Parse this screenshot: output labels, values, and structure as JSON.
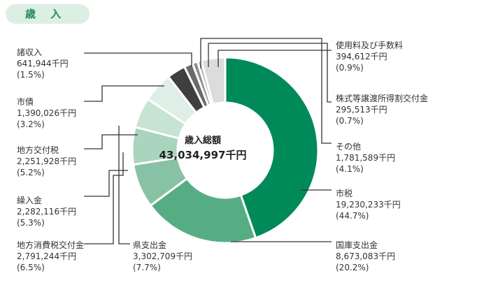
{
  "title": "歳 入",
  "center": {
    "title": "歳入総額",
    "value": "43,034,997千円"
  },
  "chart_data": {
    "type": "donut",
    "title": "歳入",
    "total_label": "歳入総額",
    "total_value": "43,034,997千円",
    "total": 43034997,
    "unit": "千円",
    "slices": [
      {
        "name": "市税",
        "value": 19230233,
        "value_text": "19,230,233千円",
        "percent": 44.7,
        "percent_text": "(44.7%)",
        "color": "#008a5a"
      },
      {
        "name": "国庫支出金",
        "value": 8673083,
        "value_text": "8,673,083千円",
        "percent": 20.2,
        "percent_text": "(20.2%)",
        "color": "#56ad84"
      },
      {
        "name": "県支出金",
        "value": 3302709,
        "value_text": "3,302,709千円",
        "percent": 7.7,
        "percent_text": "(7.7%)",
        "color": "#87c2a4"
      },
      {
        "name": "地方消費税交付金",
        "value": 2791244,
        "value_text": "2,791,244千円",
        "percent": 6.5,
        "percent_text": "(6.5%)",
        "color": "#a9d4bd"
      },
      {
        "name": "繰入金",
        "value": 2282116,
        "value_text": "2,282,116千円",
        "percent": 5.3,
        "percent_text": "(5.3%)",
        "color": "#c7e3d3"
      },
      {
        "name": "地方交付税",
        "value": 2251928,
        "value_text": "2,251,928千円",
        "percent": 5.2,
        "percent_text": "(5.2%)",
        "color": "#dfeee6"
      },
      {
        "name": "市債",
        "value": 1390026,
        "value_text": "1,390,026千円",
        "percent": 3.2,
        "percent_text": "(3.2%)",
        "color": "#3f3f3f"
      },
      {
        "name": "諸収入",
        "value": 641944,
        "value_text": "641,944千円",
        "percent": 1.5,
        "percent_text": "(1.5%)",
        "color": "#6b6b6b"
      },
      {
        "name": "使用料及び手数料",
        "value": 394612,
        "value_text": "394,612千円",
        "percent": 0.9,
        "percent_text": "(0.9%)",
        "color": "#8f8f8f"
      },
      {
        "name": "株式等譲渡所得割交付金",
        "value": 295513,
        "value_text": "295,513千円",
        "percent": 0.7,
        "percent_text": "(0.7%)",
        "color": "#b3b3b3"
      },
      {
        "name": "その他",
        "value": 1781589,
        "value_text": "1,781,589千円",
        "percent": 4.1,
        "percent_text": "(4.1%)",
        "color": "#dcdcdc"
      }
    ]
  }
}
